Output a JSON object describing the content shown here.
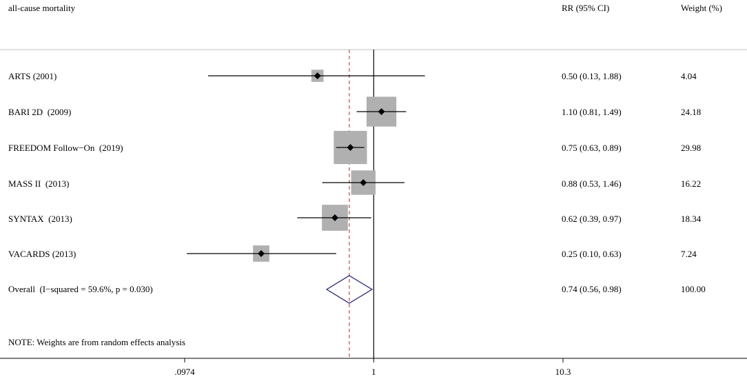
{
  "chart_data": {
    "type": "forest",
    "title": "all-cause mortality",
    "col_rr_header": "RR (95% CI)",
    "col_weight_header": "Weight (%)",
    "scale": "log",
    "x_ticks": [
      {
        "value": 0.0974,
        "label": ".0974"
      },
      {
        "value": 1,
        "label": "1"
      },
      {
        "value": 10.3,
        "label": "10.3"
      }
    ],
    "xlim": [
      0.0974,
      10.3
    ],
    "null_line": 1,
    "pooled_line": 0.74,
    "studies": [
      {
        "label": "ARTS (2001)",
        "rr": 0.5,
        "lo": 0.13,
        "hi": 1.88,
        "rr_text": "0.50 (0.13, 1.88)",
        "weight": 4.04,
        "weight_text": "4.04"
      },
      {
        "label": "BARI 2D  (2009)",
        "rr": 1.1,
        "lo": 0.81,
        "hi": 1.49,
        "rr_text": "1.10 (0.81, 1.49)",
        "weight": 24.18,
        "weight_text": "24.18"
      },
      {
        "label": "FREEDOM Follow−On  (2019)",
        "rr": 0.75,
        "lo": 0.63,
        "hi": 0.89,
        "rr_text": "0.75 (0.63, 0.89)",
        "weight": 29.98,
        "weight_text": "29.98"
      },
      {
        "label": "MASS II  (2013)",
        "rr": 0.88,
        "lo": 0.53,
        "hi": 1.46,
        "rr_text": "0.88 (0.53, 1.46)",
        "weight": 16.22,
        "weight_text": "16.22"
      },
      {
        "label": "SYNTAX  (2013)",
        "rr": 0.62,
        "lo": 0.39,
        "hi": 0.97,
        "rr_text": "0.62 (0.39, 0.97)",
        "weight": 18.34,
        "weight_text": "18.34"
      },
      {
        "label": "VACARDS (2013)",
        "rr": 0.25,
        "lo": 0.1,
        "hi": 0.63,
        "rr_text": "0.25 (0.10, 0.63)",
        "weight": 7.24,
        "weight_text": "7.24"
      }
    ],
    "overall": {
      "label": "Overall  (I−squared = 59.6%, p = 0.030)",
      "rr": 0.74,
      "lo": 0.56,
      "hi": 0.98,
      "rr_text": "0.74 (0.56, 0.98)",
      "weight_text": "100.00"
    },
    "note": "NOTE: Weights are from random effects analysis",
    "colors": {
      "box": "#b0b0b0",
      "point": "#000000",
      "diamond": "#1a1a6e",
      "pooled_line": "#c0504d",
      "rule": "#bfbfbf",
      "axis": "#000000"
    }
  }
}
